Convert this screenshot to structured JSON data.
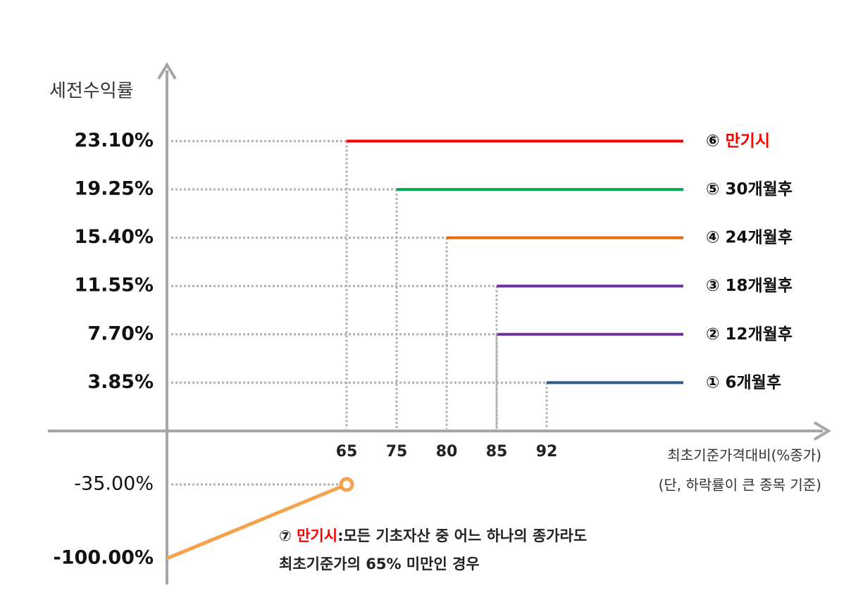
{
  "chart_data": {
    "type": "step",
    "y_label": "세전수익률",
    "x_label": "최초기준가격대비(%종가)",
    "x_note": "(단, 하락률이 큰 종목 기준)",
    "xticks": [
      65,
      75,
      80,
      85,
      92
    ],
    "series": [
      {
        "marker": "①",
        "name": "6개월후",
        "color": "#2e5a8e",
        "barrier": 92,
        "value": 3.85,
        "value_label": "3.85%"
      },
      {
        "marker": "②",
        "name": "12개월후",
        "color": "#7030a0",
        "barrier": 85,
        "value": 7.7,
        "value_label": "7.70%"
      },
      {
        "marker": "③",
        "name": "18개월후",
        "color": "#7030a0",
        "barrier": 85,
        "value": 11.55,
        "value_label": "11.55%"
      },
      {
        "marker": "④",
        "name": "24개월후",
        "color": "#e46c0a",
        "barrier": 80,
        "value": 15.4,
        "value_label": "15.40%"
      },
      {
        "marker": "⑤",
        "name": "30개월후",
        "color": "#00b050",
        "barrier": 75,
        "value": 19.25,
        "value_label": "19.25%"
      },
      {
        "marker": "⑥",
        "name": "만기시",
        "name_color": "#ff0000",
        "color": "#ff0000",
        "barrier": 65,
        "value": 23.1,
        "value_label": "23.10%"
      }
    ],
    "loss": {
      "color": "#f4a24c",
      "barrier": 65,
      "values": [
        -35.0,
        -100.0
      ],
      "value_labels": [
        "-35.00%",
        "-100.00%"
      ]
    },
    "note": {
      "marker": "⑦",
      "highlight": "만기시",
      "text": ":모든 기초자산 중 어느 하나의 종가라도",
      "line2": "최초기준가의 65% 미만인 경우"
    }
  }
}
